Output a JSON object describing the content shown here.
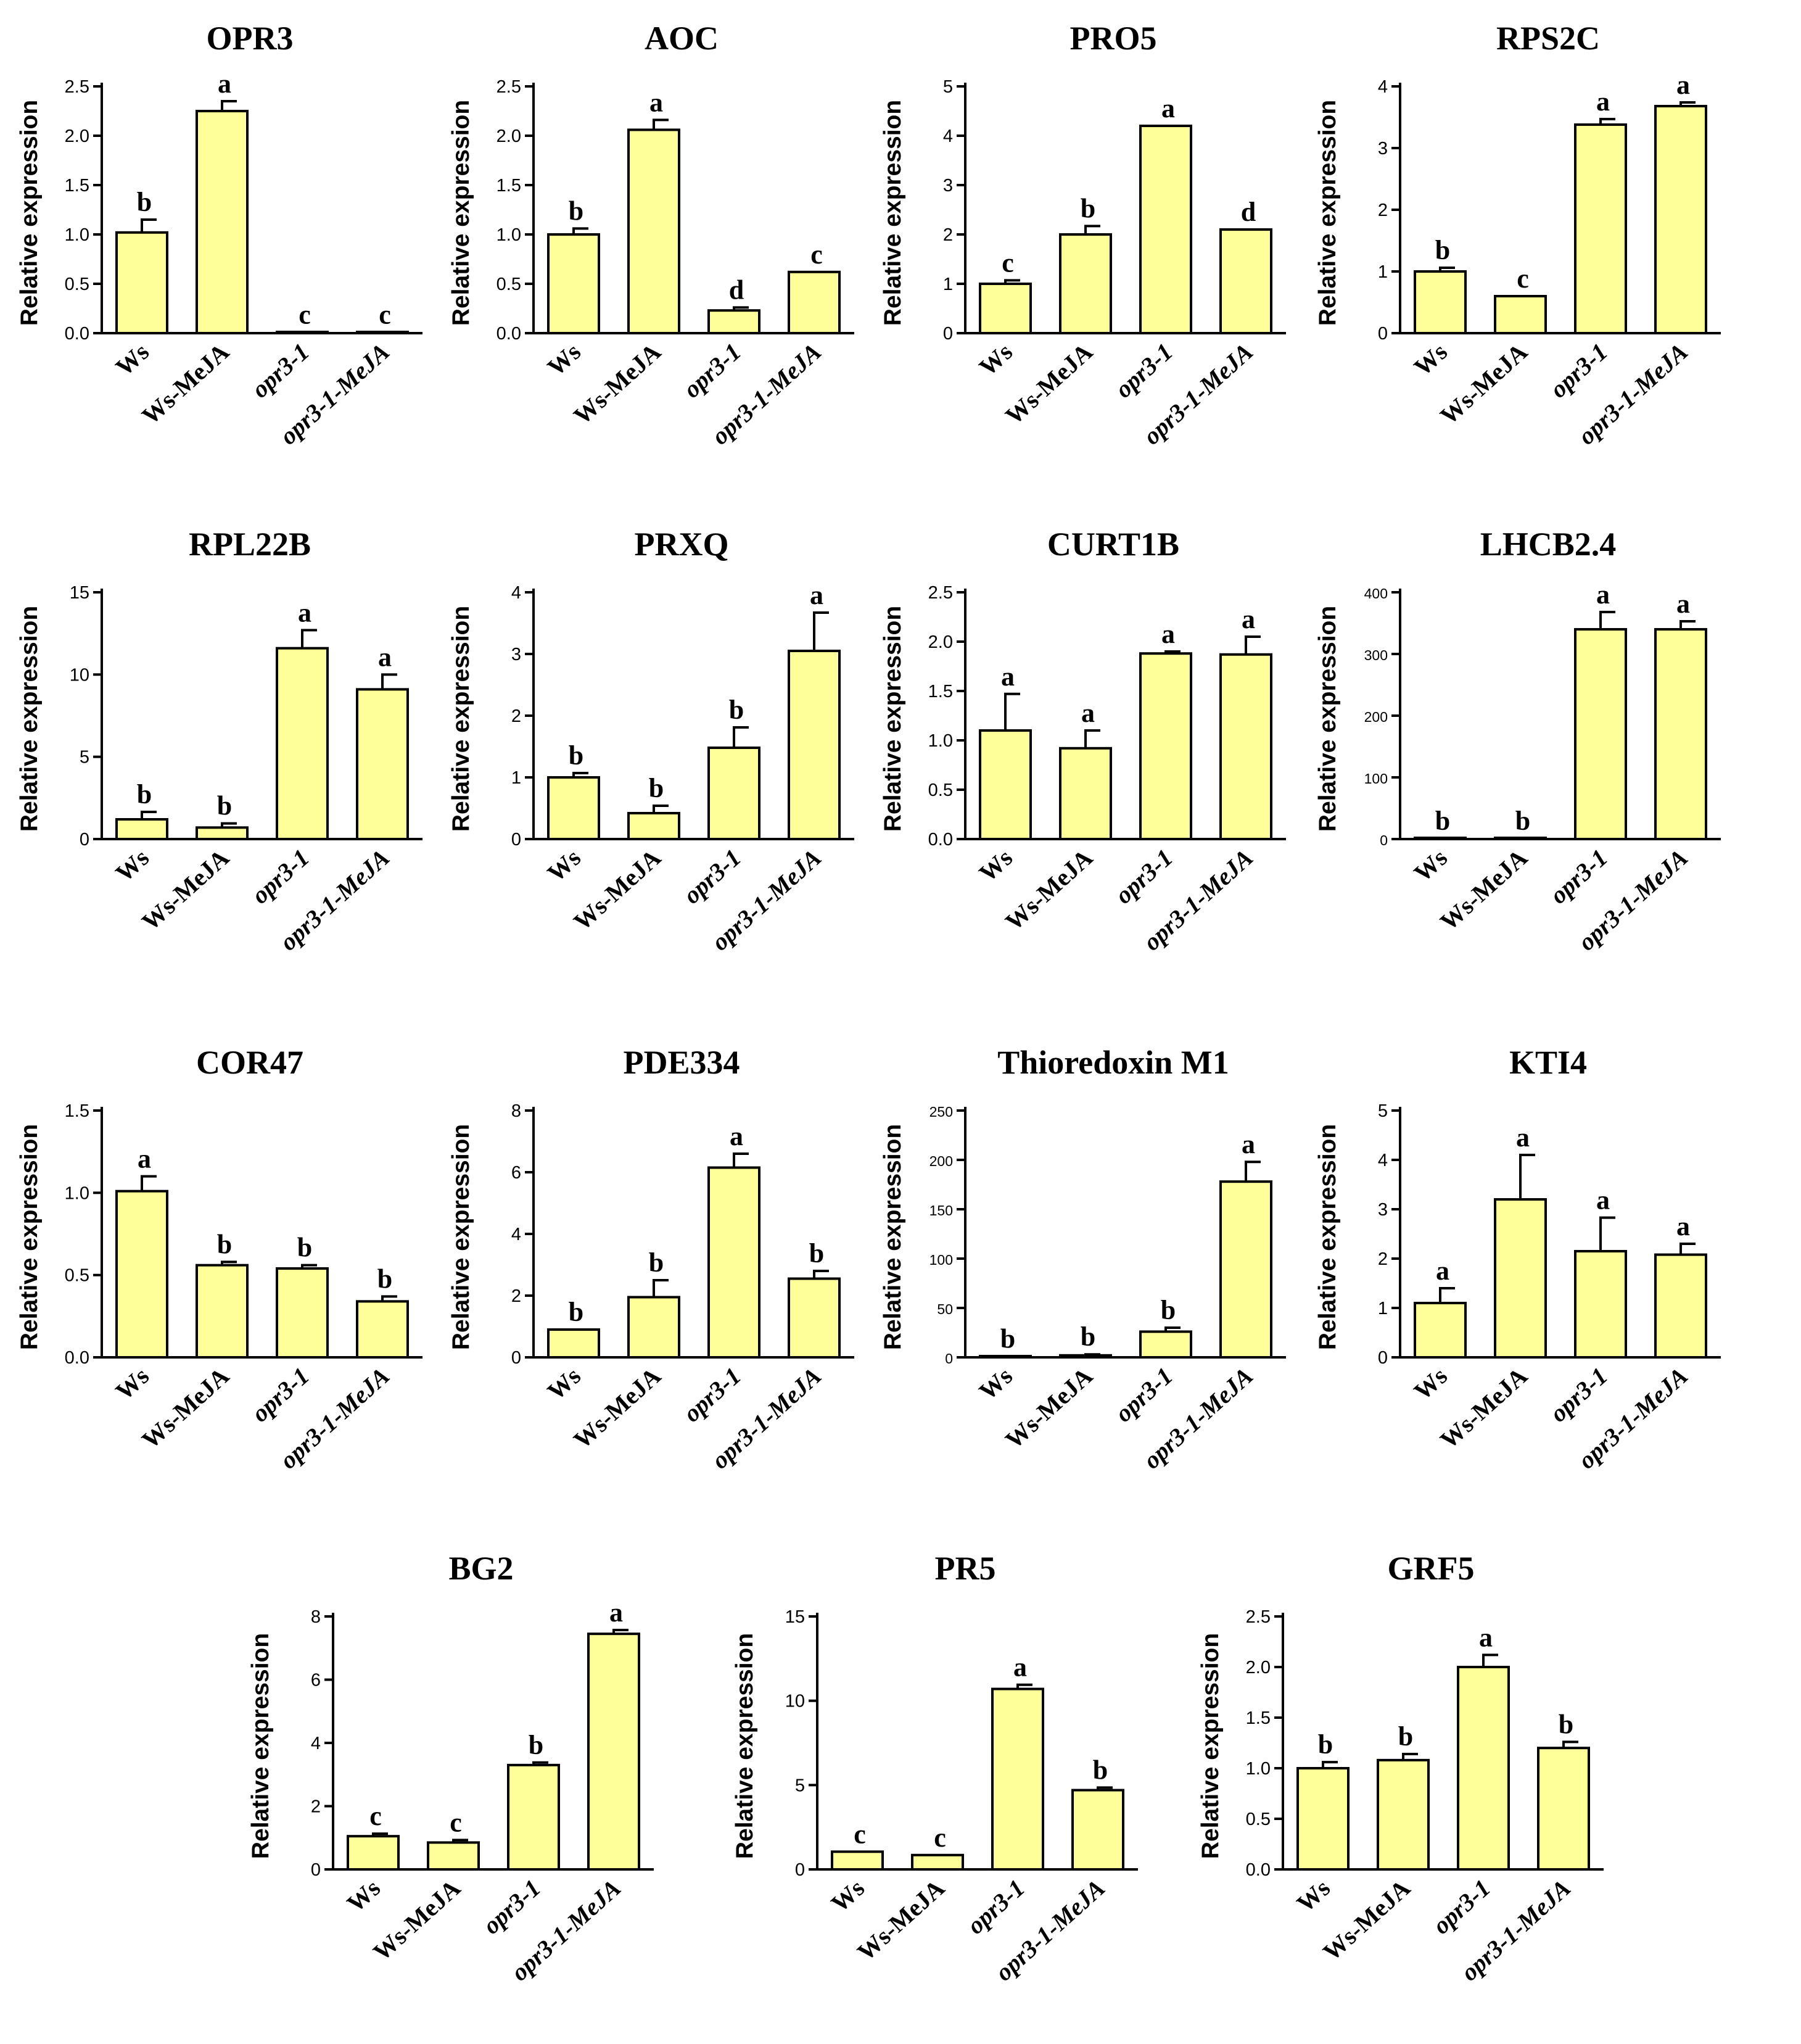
{
  "figure": {
    "bar_color": "#ffff99",
    "edge_color": "#000000",
    "ylabel": "Relative expression"
  },
  "chart_data": [
    {
      "type": "bar",
      "title": "OPR3",
      "ylabel": "Relative expression",
      "categories": [
        "Ws",
        "Ws-MeJA",
        "opr3-1",
        "opr3-1-MeJA"
      ],
      "italic_categories": [
        false,
        false,
        true,
        true
      ],
      "values": [
        1.02,
        2.25,
        0.01,
        0.01
      ],
      "errors": [
        0.13,
        0.1,
        0.0,
        0.0
      ],
      "letters": [
        "b",
        "a",
        "c",
        "c"
      ],
      "ylim": [
        0,
        2.5
      ],
      "ticks": [
        0,
        0.5,
        1.0,
        1.5,
        2.0,
        2.5
      ],
      "tick_labels": [
        "0.0",
        "0.5",
        "1.0",
        "1.5",
        "2.0",
        "2.5"
      ]
    },
    {
      "type": "bar",
      "title": "AOC",
      "ylabel": "Relative expression",
      "categories": [
        "Ws",
        "Ws-MeJA",
        "opr3-1",
        "opr3-1-MeJA"
      ],
      "italic_categories": [
        false,
        false,
        true,
        true
      ],
      "values": [
        1.0,
        2.06,
        0.23,
        0.62
      ],
      "errors": [
        0.06,
        0.1,
        0.03,
        0.0
      ],
      "letters": [
        "b",
        "a",
        "d",
        "c"
      ],
      "ylim": [
        0,
        2.5
      ],
      "ticks": [
        0,
        0.5,
        1.0,
        1.5,
        2.0,
        2.5
      ],
      "tick_labels": [
        "0.0",
        "0.5",
        "1.0",
        "1.5",
        "2.0",
        "2.5"
      ]
    },
    {
      "type": "bar",
      "title": "PRO5",
      "ylabel": "Relative expression",
      "categories": [
        "Ws",
        "Ws-MeJA",
        "opr3-1",
        "opr3-1-MeJA"
      ],
      "italic_categories": [
        false,
        false,
        true,
        true
      ],
      "values": [
        1.0,
        2.0,
        4.2,
        2.1
      ],
      "errors": [
        0.07,
        0.17,
        0.0,
        0.0
      ],
      "letters": [
        "c",
        "b",
        "a",
        "d"
      ],
      "ylim": [
        0,
        5
      ],
      "ticks": [
        0,
        1,
        2,
        3,
        4,
        5
      ],
      "tick_labels": [
        "0",
        "1",
        "2",
        "3",
        "4",
        "5"
      ]
    },
    {
      "type": "bar",
      "title": "RPS2C",
      "ylabel": "Relative expression",
      "categories": [
        "Ws",
        "Ws-MeJA",
        "opr3-1",
        "opr3-1-MeJA"
      ],
      "italic_categories": [
        false,
        false,
        true,
        true
      ],
      "values": [
        1.0,
        0.6,
        3.38,
        3.68
      ],
      "errors": [
        0.06,
        0.0,
        0.09,
        0.06
      ],
      "letters": [
        "b",
        "c",
        "a",
        "a"
      ],
      "ylim": [
        0,
        4
      ],
      "ticks": [
        0,
        1,
        2,
        3,
        4
      ],
      "tick_labels": [
        "0",
        "1",
        "2",
        "3",
        "4"
      ]
    },
    {
      "type": "bar",
      "title": "RPL22B",
      "ylabel": "Relative expression",
      "categories": [
        "Ws",
        "Ws-MeJA",
        "opr3-1",
        "opr3-1-MeJA"
      ],
      "italic_categories": [
        false,
        false,
        true,
        true
      ],
      "values": [
        1.2,
        0.7,
        11.6,
        9.1
      ],
      "errors": [
        0.45,
        0.25,
        1.1,
        0.9
      ],
      "letters": [
        "b",
        "b",
        "a",
        "a"
      ],
      "ylim": [
        0,
        15
      ],
      "ticks": [
        0,
        5,
        10,
        15
      ],
      "tick_labels": [
        "0",
        "5",
        "10",
        "15"
      ]
    },
    {
      "type": "bar",
      "title": "PRXQ",
      "ylabel": "Relative expression",
      "categories": [
        "Ws",
        "Ws-MeJA",
        "opr3-1",
        "opr3-1-MeJA"
      ],
      "italic_categories": [
        false,
        false,
        true,
        true
      ],
      "values": [
        1.0,
        0.42,
        1.48,
        3.05
      ],
      "errors": [
        0.07,
        0.12,
        0.33,
        0.62
      ],
      "letters": [
        "b",
        "b",
        "b",
        "a"
      ],
      "ylim": [
        0,
        4
      ],
      "ticks": [
        0,
        1,
        2,
        3,
        4
      ],
      "tick_labels": [
        "0",
        "1",
        "2",
        "3",
        "4"
      ]
    },
    {
      "type": "bar",
      "title": "CURT1B",
      "ylabel": "Relative expression",
      "categories": [
        "Ws",
        "Ws-MeJA",
        "opr3-1",
        "opr3-1-MeJA"
      ],
      "italic_categories": [
        false,
        false,
        true,
        true
      ],
      "values": [
        1.1,
        0.92,
        1.88,
        1.87
      ],
      "errors": [
        0.37,
        0.18,
        0.02,
        0.18
      ],
      "letters": [
        "a",
        "a",
        "a",
        "a"
      ],
      "ylim": [
        0,
        2.5
      ],
      "ticks": [
        0,
        0.5,
        1.0,
        1.5,
        2.0,
        2.5
      ],
      "tick_labels": [
        "0.0",
        "0.5",
        "1.0",
        "1.5",
        "2.0",
        "2.5"
      ]
    },
    {
      "type": "bar",
      "title": "LHCB2.4",
      "ylabel": "Relative expression",
      "categories": [
        "Ws",
        "Ws-MeJA",
        "opr3-1",
        "opr3-1-MeJA"
      ],
      "italic_categories": [
        false,
        false,
        true,
        true
      ],
      "values": [
        1,
        1,
        340,
        340
      ],
      "errors": [
        0,
        0,
        28,
        13
      ],
      "letters": [
        "b",
        "b",
        "a",
        "a"
      ],
      "ylim": [
        0,
        400
      ],
      "ticks": [
        0,
        100,
        200,
        300,
        400
      ],
      "tick_labels": [
        "0",
        "100",
        "200",
        "300",
        "400"
      ]
    },
    {
      "type": "bar",
      "title": "COR47",
      "ylabel": "Relative expression",
      "categories": [
        "Ws",
        "Ws-MeJA",
        "opr3-1",
        "opr3-1-MeJA"
      ],
      "italic_categories": [
        false,
        false,
        true,
        true
      ],
      "values": [
        1.01,
        0.56,
        0.54,
        0.34
      ],
      "errors": [
        0.09,
        0.02,
        0.02,
        0.03
      ],
      "letters": [
        "a",
        "b",
        "b",
        "b"
      ],
      "ylim": [
        0,
        1.5
      ],
      "ticks": [
        0,
        0.5,
        1.0,
        1.5
      ],
      "tick_labels": [
        "0.0",
        "0.5",
        "1.0",
        "1.5"
      ]
    },
    {
      "type": "bar",
      "title": "PDE334",
      "ylabel": "Relative expression",
      "categories": [
        "Ws",
        "Ws-MeJA",
        "opr3-1",
        "opr3-1-MeJA"
      ],
      "italic_categories": [
        false,
        false,
        true,
        true
      ],
      "values": [
        0.9,
        1.95,
        6.15,
        2.55
      ],
      "errors": [
        0.0,
        0.55,
        0.45,
        0.25
      ],
      "letters": [
        "b",
        "b",
        "a",
        "b"
      ],
      "ylim": [
        0,
        8
      ],
      "ticks": [
        0,
        2,
        4,
        6,
        8
      ],
      "tick_labels": [
        "0",
        "2",
        "4",
        "6",
        "8"
      ]
    },
    {
      "type": "bar",
      "title": "Thioredoxin M1",
      "ylabel": "Relative expression",
      "categories": [
        "Ws",
        "Ws-MeJA",
        "opr3-1",
        "opr3-1-MeJA"
      ],
      "italic_categories": [
        false,
        false,
        true,
        true
      ],
      "values": [
        1,
        2,
        26,
        178
      ],
      "errors": [
        0,
        1,
        4,
        20
      ],
      "letters": [
        "b",
        "b",
        "b",
        "a"
      ],
      "ylim": [
        0,
        250
      ],
      "ticks": [
        0,
        50,
        100,
        150,
        200,
        250
      ],
      "tick_labels": [
        "0",
        "50",
        "100",
        "150",
        "200",
        "250"
      ]
    },
    {
      "type": "bar",
      "title": "KTI4",
      "ylabel": "Relative expression",
      "categories": [
        "Ws",
        "Ws-MeJA",
        "opr3-1",
        "opr3-1-MeJA"
      ],
      "italic_categories": [
        false,
        false,
        true,
        true
      ],
      "values": [
        1.1,
        3.2,
        2.15,
        2.08
      ],
      "errors": [
        0.3,
        0.9,
        0.68,
        0.22
      ],
      "letters": [
        "a",
        "a",
        "a",
        "a"
      ],
      "ylim": [
        0,
        5
      ],
      "ticks": [
        0,
        1,
        2,
        3,
        4,
        5
      ],
      "tick_labels": [
        "0",
        "1",
        "2",
        "3",
        "4",
        "5"
      ]
    },
    {
      "type": "bar",
      "title": "BG2",
      "ylabel": "Relative expression",
      "categories": [
        "Ws",
        "Ws-MeJA",
        "opr3-1",
        "opr3-1-MeJA"
      ],
      "italic_categories": [
        false,
        false,
        true,
        true
      ],
      "values": [
        1.05,
        0.85,
        3.3,
        7.45
      ],
      "errors": [
        0.08,
        0.08,
        0.08,
        0.12
      ],
      "letters": [
        "c",
        "c",
        "b",
        "a"
      ],
      "ylim": [
        0,
        8
      ],
      "ticks": [
        0,
        2,
        4,
        6,
        8
      ],
      "tick_labels": [
        "0",
        "2",
        "4",
        "6",
        "8"
      ]
    },
    {
      "type": "bar",
      "title": "PR5",
      "ylabel": "Relative expression",
      "categories": [
        "Ws",
        "Ws-MeJA",
        "opr3-1",
        "opr3-1-MeJA"
      ],
      "italic_categories": [
        false,
        false,
        true,
        true
      ],
      "values": [
        1.05,
        0.85,
        10.7,
        4.7
      ],
      "errors": [
        0.0,
        0.0,
        0.25,
        0.15
      ],
      "letters": [
        "c",
        "c",
        "a",
        "b"
      ],
      "ylim": [
        0,
        15
      ],
      "ticks": [
        0,
        5,
        10,
        15
      ],
      "tick_labels": [
        "0",
        "5",
        "10",
        "15"
      ]
    },
    {
      "type": "bar",
      "title": "GRF5",
      "ylabel": "Relative expression",
      "categories": [
        "Ws",
        "Ws-MeJA",
        "opr3-1",
        "opr3-1-MeJA"
      ],
      "italic_categories": [
        false,
        false,
        true,
        true
      ],
      "values": [
        1.0,
        1.08,
        2.0,
        1.2
      ],
      "errors": [
        0.06,
        0.06,
        0.12,
        0.06
      ],
      "letters": [
        "b",
        "b",
        "a",
        "b"
      ],
      "ylim": [
        0,
        2.5
      ],
      "ticks": [
        0,
        0.5,
        1.0,
        1.5,
        2.0,
        2.5
      ],
      "tick_labels": [
        "0.0",
        "0.5",
        "1.0",
        "1.5",
        "2.0",
        "2.5"
      ]
    }
  ]
}
